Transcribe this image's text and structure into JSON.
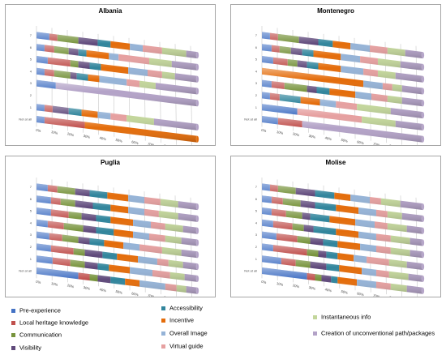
{
  "chart_data": [
    {
      "type": "bar",
      "stacked": "percent",
      "orientation": "horizontal",
      "title": "Albania",
      "rows": [
        "7",
        "6",
        "5",
        "4",
        "3",
        "2",
        "1",
        "Not at all"
      ],
      "xticks": [
        "0%",
        "10%",
        "20%",
        "30%",
        "40%",
        "50%",
        "60%",
        "70%",
        "80%",
        "90%",
        "100%"
      ],
      "series": [
        {
          "name": "Pre-experience",
          "values": [
            0.08,
            0.05,
            0.07,
            0.05,
            0.12,
            0,
            0.05,
            0.05
          ]
        },
        {
          "name": "Local heritage knowledge",
          "values": [
            0.05,
            0.06,
            0.14,
            0.06,
            0,
            0,
            0.05,
            0.25
          ]
        },
        {
          "name": "Communication",
          "values": [
            0.13,
            0.09,
            0.05,
            0.1,
            0,
            0,
            0,
            0
          ]
        },
        {
          "name": "Visibility",
          "values": [
            0.12,
            0.06,
            0.07,
            0.04,
            0,
            0,
            0.1,
            0
          ]
        },
        {
          "name": "Accessibility",
          "values": [
            0.08,
            0.05,
            0.07,
            0.07,
            0,
            0,
            0.08,
            0
          ]
        },
        {
          "name": "Incentive",
          "values": [
            0.12,
            0.14,
            0.17,
            0.07,
            0,
            0,
            0.1,
            0.7
          ]
        },
        {
          "name": "Overall Image",
          "values": [
            0.08,
            0.06,
            0.12,
            0.17,
            0,
            0,
            0.08,
            0
          ]
        },
        {
          "name": "Virtual guide",
          "values": [
            0.12,
            0.19,
            0.09,
            0.08,
            0,
            0,
            0.1,
            0
          ]
        },
        {
          "name": "Instantaneous info",
          "values": [
            0.15,
            0.14,
            0.08,
            0.1,
            0,
            0,
            0.17,
            0
          ]
        },
        {
          "name": "Creation of unconventional path/packages",
          "values": [
            0.07,
            0.16,
            0.14,
            0.26,
            0.88,
            0,
            0.27,
            0
          ]
        }
      ]
    },
    {
      "type": "bar",
      "stacked": "percent",
      "orientation": "horizontal",
      "title": "Montenegro",
      "rows": [
        "7",
        "6",
        "5",
        "4",
        "3",
        "2",
        "1",
        "Not at all"
      ],
      "xticks": [
        "0%",
        "10%",
        "20%",
        "30%",
        "40%",
        "50%",
        "60%",
        "70%",
        "80%",
        "90%",
        "100%"
      ],
      "series": [
        {
          "name": "Pre-experience",
          "values": [
            0.05,
            0.06,
            0.07,
            0,
            0.06,
            0.05,
            0.22,
            0.1
          ]
        },
        {
          "name": "Local heritage knowledge",
          "values": [
            0.05,
            0.05,
            0.09,
            0,
            0.08,
            0.06,
            0,
            0.15
          ]
        },
        {
          "name": "Communication",
          "values": [
            0.13,
            0.07,
            0.06,
            0,
            0.14,
            0,
            0,
            0
          ]
        },
        {
          "name": "Visibility",
          "values": [
            0.12,
            0.07,
            0.06,
            0,
            0.06,
            0,
            0,
            0
          ]
        },
        {
          "name": "Accessibility",
          "values": [
            0.09,
            0.07,
            0.07,
            0,
            0.08,
            0.13,
            0,
            0
          ]
        },
        {
          "name": "Incentive",
          "values": [
            0.11,
            0.17,
            0.14,
            0.63,
            0.16,
            0.12,
            0,
            0
          ]
        },
        {
          "name": "Overall Image",
          "values": [
            0.12,
            0.12,
            0.14,
            0.12,
            0.1,
            0.1,
            0,
            0
          ]
        },
        {
          "name": "Virtual guide",
          "values": [
            0.11,
            0.11,
            0.09,
            0.06,
            0.1,
            0.13,
            0.4,
            0
          ]
        },
        {
          "name": "Instantaneous info",
          "values": [
            0.11,
            0.14,
            0.11,
            0.06,
            0.09,
            0.21,
            0.21,
            0
          ]
        },
        {
          "name": "Creation of unconventional path/packages",
          "values": [
            0.11,
            0.14,
            0.17,
            0.13,
            0.13,
            0.2,
            0.17,
            0.75
          ]
        }
      ]
    },
    {
      "type": "bar",
      "stacked": "percent",
      "orientation": "horizontal",
      "title": "Puglia",
      "rows": [
        "7",
        "6",
        "5",
        "4",
        "3",
        "2",
        "1",
        "Not at all"
      ],
      "xticks": [
        "0%",
        "10%",
        "20%",
        "30%",
        "40%",
        "50%",
        "60%",
        "70%",
        "80%",
        "90%",
        "100%"
      ],
      "series": [
        {
          "name": "Pre-experience",
          "values": [
            0.07,
            0.09,
            0.09,
            0.07,
            0.08,
            0.09,
            0.1,
            0.26
          ]
        },
        {
          "name": "Local heritage knowledge",
          "values": [
            0.06,
            0.06,
            0.11,
            0.1,
            0.08,
            0.14,
            0.11,
            0.07
          ]
        },
        {
          "name": "Communication",
          "values": [
            0.11,
            0.09,
            0.08,
            0.12,
            0.1,
            0.07,
            0.09,
            0.05
          ]
        },
        {
          "name": "Visibility",
          "values": [
            0.09,
            0.11,
            0.09,
            0.08,
            0.07,
            0.11,
            0.08,
            0.08
          ]
        },
        {
          "name": "Accessibility",
          "values": [
            0.11,
            0.11,
            0.09,
            0.11,
            0.09,
            0.09,
            0.07,
            0.09
          ]
        },
        {
          "name": "Incentive",
          "values": [
            0.13,
            0.11,
            0.14,
            0.12,
            0.12,
            0.13,
            0.13,
            0.09
          ]
        },
        {
          "name": "Overall Image",
          "values": [
            0.1,
            0.1,
            0.11,
            0.1,
            0.1,
            0.12,
            0.14,
            0.16
          ]
        },
        {
          "name": "Virtual guide",
          "values": [
            0.1,
            0.09,
            0.09,
            0.1,
            0.14,
            0.07,
            0.11,
            0.07
          ]
        },
        {
          "name": "Instantaneous info",
          "values": [
            0.11,
            0.12,
            0.11,
            0.1,
            0.12,
            0.09,
            0.09,
            0.06
          ]
        },
        {
          "name": "Creation of unconventional path/packages",
          "values": [
            0.12,
            0.12,
            0.09,
            0.1,
            0.1,
            0.09,
            0.08,
            0.07
          ]
        }
      ]
    },
    {
      "type": "bar",
      "stacked": "percent",
      "orientation": "horizontal",
      "title": "Molise",
      "rows": [
        "7",
        "6",
        "5",
        "4",
        "3",
        "2",
        "1",
        "Not at all"
      ],
      "xticks": [
        "0%",
        "10%",
        "20%",
        "30%",
        "40%",
        "50%",
        "60%",
        "70%",
        "80%",
        "90%",
        "100%"
      ],
      "series": [
        {
          "name": "Pre-experience",
          "values": [
            0.05,
            0.06,
            0.06,
            0.07,
            0.09,
            0.07,
            0.12,
            0.28
          ]
        },
        {
          "name": "Local heritage knowledge",
          "values": [
            0.05,
            0.07,
            0.09,
            0.12,
            0.13,
            0.21,
            0.09,
            0.05
          ]
        },
        {
          "name": "Communication",
          "values": [
            0.11,
            0.11,
            0.1,
            0.07,
            0.08,
            0.07,
            0.09,
            0.04
          ]
        },
        {
          "name": "Visibility",
          "values": [
            0.12,
            0.09,
            0.05,
            0.06,
            0.08,
            0.05,
            0.1,
            0.06
          ]
        },
        {
          "name": "Accessibility",
          "values": [
            0.12,
            0.13,
            0.12,
            0.14,
            0.09,
            0.07,
            0.08,
            0.04
          ]
        },
        {
          "name": "Incentive",
          "values": [
            0.1,
            0.14,
            0.16,
            0.14,
            0.14,
            0.1,
            0.14,
            0.12
          ]
        },
        {
          "name": "Overall Image",
          "values": [
            0.12,
            0.11,
            0.12,
            0.11,
            0.1,
            0.08,
            0.09,
            0.12
          ]
        },
        {
          "name": "Virtual guide",
          "values": [
            0.07,
            0.07,
            0.08,
            0.09,
            0.09,
            0.14,
            0.08,
            0.09
          ]
        },
        {
          "name": "Instantaneous info",
          "values": [
            0.12,
            0.09,
            0.12,
            0.12,
            0.12,
            0.11,
            0.12,
            0.1
          ]
        },
        {
          "name": "Creation of unconventional path/packages",
          "values": [
            0.14,
            0.13,
            0.1,
            0.08,
            0.08,
            0.1,
            0.09,
            0.1
          ]
        }
      ]
    }
  ],
  "colors": {
    "Pre-experience": "#4472c4",
    "Local heritage knowledge": "#c0504d",
    "Communication": "#77933c",
    "Visibility": "#604a7b",
    "Accessibility": "#31859c",
    "Incentive": "#e46c0a",
    "Overall Image": "#95b3d7",
    "Virtual guide": "#e6a0a0",
    "Instantaneous info": "#c3d69b",
    "Creation of unconventional path/packages": "#b3a2c7"
  },
  "legend": [
    {
      "name": "Pre-experience",
      "color": "#4472c4"
    },
    {
      "name": "Accessibility",
      "color": "#31859c"
    },
    {
      "name": "Local heritage knowledge",
      "color": "#c0504d"
    },
    {
      "name": "Incentive",
      "color": "#e46c0a"
    },
    {
      "name": "Instantaneous info",
      "color": "#c3d69b"
    },
    {
      "name": "Communication",
      "color": "#77933c"
    },
    {
      "name": "Overall Image",
      "color": "#95b3d7"
    },
    {
      "name": "Creation of unconventional path/packages",
      "color": "#b3a2c7"
    },
    {
      "name": "Visibility",
      "color": "#604a7b"
    },
    {
      "name": "Virtual guide",
      "color": "#e6a0a0"
    }
  ]
}
